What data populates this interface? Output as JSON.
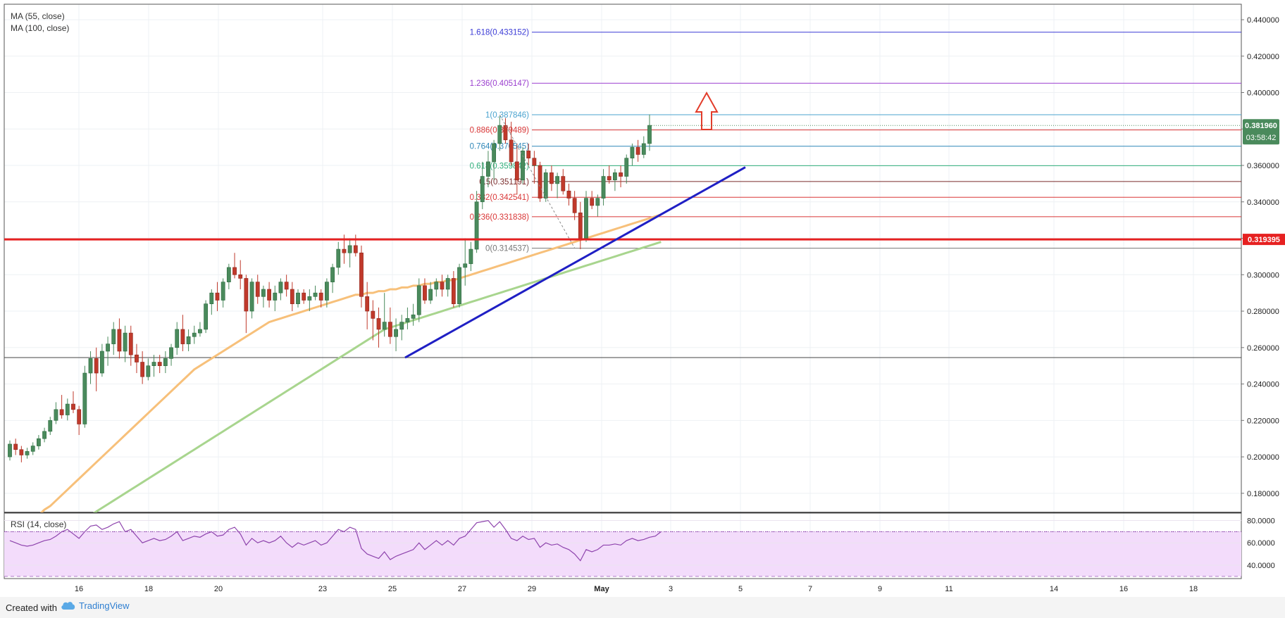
{
  "footer": {
    "created_with": "Created with",
    "brand": "TradingView"
  },
  "colors": {
    "up": "#4a8a5c",
    "down": "#c0392b",
    "ma55": "#f7c07a",
    "ma100": "#a8d58e",
    "support": "#e62121",
    "trendline": "#1f1fc4",
    "rsi_line": "#8e44ad",
    "rsi_band": "#f3dcfb",
    "price_badge": "#4a8a5c"
  },
  "chart_data": [
    {
      "type": "candlestick",
      "indicators": [
        "MA (55, close)",
        "MA (100, close)"
      ],
      "x_tick_labels": [
        "16",
        "18",
        "20",
        "23",
        "25",
        "27",
        "29",
        "May",
        "3",
        "5",
        "7",
        "9",
        "11",
        "14",
        "16",
        "18"
      ],
      "y_tick_labels": [
        "0.180000",
        "0.200000",
        "0.220000",
        "0.240000",
        "0.260000",
        "0.280000",
        "0.300000",
        "0.320000",
        "0.340000",
        "0.360000",
        "0.380000",
        "0.400000",
        "0.420000",
        "0.440000"
      ],
      "ylim": [
        0.1695,
        0.4485
      ],
      "support_level": {
        "value": 0.319395,
        "label": "0.319395"
      },
      "horizontal_line": 0.2545,
      "last_price": {
        "value": 0.38196,
        "label": "0.381960",
        "countdown": "03:58:42"
      },
      "fibonacci": [
        {
          "label": "1.618(0.433152)",
          "value": 0.433152,
          "color": "#3a3ad6"
        },
        {
          "label": "1.236(0.405147)",
          "value": 0.405147,
          "color": "#9b3fcf"
        },
        {
          "label": "1(0.387846)",
          "value": 0.387846,
          "color": "#4aa3cf"
        },
        {
          "label": "0.886(0.379489)",
          "value": 0.379489,
          "color": "#d93636"
        },
        {
          "label": "0.764(0.370545)",
          "value": 0.370545,
          "color": "#2f87b8"
        },
        {
          "label": "0.618(0.359842)",
          "value": 0.359842,
          "color": "#2fae7a"
        },
        {
          "label": "0.5(0.351191)",
          "value": 0.351191,
          "color": "#7a2b2b"
        },
        {
          "label": "0.382(0.342541)",
          "value": 0.342541,
          "color": "#d93636"
        },
        {
          "label": "0.236(0.331838)",
          "value": 0.331838,
          "color": "#d93636"
        },
        {
          "label": "0(0.314537)",
          "value": 0.314537,
          "color": "#777777"
        }
      ],
      "candles": [
        [
          0.2,
          0.209,
          0.198,
          0.207
        ],
        [
          0.207,
          0.21,
          0.201,
          0.204
        ],
        [
          0.204,
          0.206,
          0.197,
          0.201
        ],
        [
          0.201,
          0.205,
          0.199,
          0.203
        ],
        [
          0.203,
          0.208,
          0.201,
          0.206
        ],
        [
          0.206,
          0.212,
          0.204,
          0.21
        ],
        [
          0.21,
          0.216,
          0.208,
          0.214
        ],
        [
          0.214,
          0.222,
          0.212,
          0.22
        ],
        [
          0.22,
          0.23,
          0.218,
          0.226
        ],
        [
          0.226,
          0.234,
          0.221,
          0.223
        ],
        [
          0.223,
          0.232,
          0.22,
          0.229
        ],
        [
          0.229,
          0.236,
          0.224,
          0.226
        ],
        [
          0.226,
          0.228,
          0.212,
          0.218
        ],
        [
          0.218,
          0.25,
          0.216,
          0.246
        ],
        [
          0.246,
          0.258,
          0.24,
          0.254
        ],
        [
          0.254,
          0.26,
          0.236,
          0.246
        ],
        [
          0.246,
          0.262,
          0.244,
          0.258
        ],
        [
          0.258,
          0.266,
          0.25,
          0.262
        ],
        [
          0.262,
          0.274,
          0.256,
          0.27
        ],
        [
          0.27,
          0.276,
          0.254,
          0.258
        ],
        [
          0.258,
          0.272,
          0.252,
          0.268
        ],
        [
          0.268,
          0.272,
          0.25,
          0.256
        ],
        [
          0.256,
          0.262,
          0.246,
          0.252
        ],
        [
          0.252,
          0.258,
          0.24,
          0.244
        ],
        [
          0.244,
          0.254,
          0.242,
          0.25
        ],
        [
          0.25,
          0.256,
          0.244,
          0.252
        ],
        [
          0.252,
          0.256,
          0.246,
          0.25
        ],
        [
          0.25,
          0.258,
          0.246,
          0.254
        ],
        [
          0.254,
          0.262,
          0.25,
          0.26
        ],
        [
          0.26,
          0.274,
          0.256,
          0.27
        ],
        [
          0.27,
          0.278,
          0.258,
          0.262
        ],
        [
          0.262,
          0.27,
          0.258,
          0.266
        ],
        [
          0.266,
          0.272,
          0.262,
          0.268
        ],
        [
          0.268,
          0.274,
          0.266,
          0.27
        ],
        [
          0.27,
          0.286,
          0.268,
          0.284
        ],
        [
          0.284,
          0.292,
          0.278,
          0.29
        ],
        [
          0.29,
          0.296,
          0.28,
          0.286
        ],
        [
          0.286,
          0.298,
          0.282,
          0.296
        ],
        [
          0.296,
          0.306,
          0.292,
          0.304
        ],
        [
          0.304,
          0.312,
          0.298,
          0.3
        ],
        [
          0.3,
          0.308,
          0.292,
          0.298
        ],
        [
          0.298,
          0.3,
          0.268,
          0.28
        ],
        [
          0.28,
          0.298,
          0.276,
          0.296
        ],
        [
          0.296,
          0.3,
          0.284,
          0.288
        ],
        [
          0.288,
          0.294,
          0.282,
          0.292
        ],
        [
          0.292,
          0.296,
          0.282,
          0.286
        ],
        [
          0.286,
          0.294,
          0.28,
          0.29
        ],
        [
          0.29,
          0.298,
          0.286,
          0.296
        ],
        [
          0.296,
          0.3,
          0.288,
          0.292
        ],
        [
          0.292,
          0.296,
          0.28,
          0.284
        ],
        [
          0.284,
          0.292,
          0.282,
          0.29
        ],
        [
          0.29,
          0.292,
          0.284,
          0.286
        ],
        [
          0.286,
          0.292,
          0.28,
          0.288
        ],
        [
          0.288,
          0.294,
          0.286,
          0.29
        ],
        [
          0.29,
          0.292,
          0.282,
          0.286
        ],
        [
          0.286,
          0.298,
          0.282,
          0.296
        ],
        [
          0.296,
          0.306,
          0.29,
          0.304
        ],
        [
          0.304,
          0.318,
          0.3,
          0.314
        ],
        [
          0.314,
          0.322,
          0.306,
          0.312
        ],
        [
          0.312,
          0.32,
          0.304,
          0.316
        ],
        [
          0.316,
          0.322,
          0.31,
          0.312
        ],
        [
          0.312,
          0.316,
          0.282,
          0.288
        ],
        [
          0.288,
          0.296,
          0.27,
          0.28
        ],
        [
          0.28,
          0.286,
          0.264,
          0.276
        ],
        [
          0.276,
          0.282,
          0.26,
          0.27
        ],
        [
          0.27,
          0.29,
          0.266,
          0.274
        ],
        [
          0.274,
          0.282,
          0.262,
          0.266
        ],
        [
          0.266,
          0.276,
          0.258,
          0.27
        ],
        [
          0.27,
          0.278,
          0.264,
          0.274
        ],
        [
          0.274,
          0.282,
          0.27,
          0.276
        ],
        [
          0.276,
          0.284,
          0.272,
          0.278
        ],
        [
          0.278,
          0.298,
          0.274,
          0.294
        ],
        [
          0.294,
          0.298,
          0.284,
          0.286
        ],
        [
          0.286,
          0.296,
          0.284,
          0.292
        ],
        [
          0.292,
          0.298,
          0.288,
          0.296
        ],
        [
          0.296,
          0.3,
          0.288,
          0.292
        ],
        [
          0.292,
          0.3,
          0.288,
          0.298
        ],
        [
          0.298,
          0.302,
          0.282,
          0.284
        ],
        [
          0.284,
          0.306,
          0.282,
          0.304
        ],
        [
          0.304,
          0.32,
          0.294,
          0.306
        ],
        [
          0.306,
          0.318,
          0.302,
          0.314
        ],
        [
          0.314,
          0.346,
          0.312,
          0.34
        ],
        [
          0.34,
          0.362,
          0.336,
          0.354
        ],
        [
          0.354,
          0.368,
          0.348,
          0.362
        ],
        [
          0.362,
          0.374,
          0.352,
          0.372
        ],
        [
          0.372,
          0.387,
          0.368,
          0.382
        ],
        [
          0.382,
          0.386,
          0.372,
          0.374
        ],
        [
          0.374,
          0.384,
          0.36,
          0.362
        ],
        [
          0.362,
          0.372,
          0.344,
          0.352
        ],
        [
          0.352,
          0.37,
          0.35,
          0.368
        ],
        [
          0.368,
          0.372,
          0.36,
          0.364
        ],
        [
          0.364,
          0.368,
          0.35,
          0.36
        ],
        [
          0.36,
          0.362,
          0.34,
          0.342
        ],
        [
          0.342,
          0.358,
          0.34,
          0.356
        ],
        [
          0.356,
          0.36,
          0.346,
          0.35
        ],
        [
          0.35,
          0.356,
          0.342,
          0.354
        ],
        [
          0.354,
          0.358,
          0.344,
          0.346
        ],
        [
          0.346,
          0.35,
          0.338,
          0.342
        ],
        [
          0.342,
          0.346,
          0.33,
          0.334
        ],
        [
          0.334,
          0.34,
          0.314,
          0.32
        ],
        [
          0.32,
          0.346,
          0.318,
          0.342
        ],
        [
          0.342,
          0.346,
          0.336,
          0.338
        ],
        [
          0.338,
          0.344,
          0.332,
          0.342
        ],
        [
          0.342,
          0.358,
          0.338,
          0.354
        ],
        [
          0.354,
          0.36,
          0.35,
          0.352
        ],
        [
          0.352,
          0.358,
          0.346,
          0.356
        ],
        [
          0.356,
          0.36,
          0.348,
          0.354
        ],
        [
          0.354,
          0.366,
          0.35,
          0.364
        ],
        [
          0.364,
          0.372,
          0.36,
          0.37
        ],
        [
          0.37,
          0.374,
          0.362,
          0.366
        ],
        [
          0.366,
          0.376,
          0.364,
          0.372
        ],
        [
          0.372,
          0.388,
          0.368,
          0.382
        ]
      ],
      "ma55": [
        0.155,
        0.158,
        0.161,
        0.163,
        0.166,
        0.168,
        0.171,
        0.173,
        0.176,
        0.179,
        0.182,
        0.185,
        0.188,
        0.191,
        0.194,
        0.197,
        0.2,
        0.203,
        0.206,
        0.209,
        0.212,
        0.215,
        0.218,
        0.221,
        0.224,
        0.227,
        0.23,
        0.233,
        0.236,
        0.239,
        0.242,
        0.245,
        0.248,
        0.25,
        0.252,
        0.254,
        0.256,
        0.258,
        0.26,
        0.262,
        0.264,
        0.266,
        0.268,
        0.27,
        0.272,
        0.274,
        0.275,
        0.276,
        0.277,
        0.278,
        0.279,
        0.28,
        0.281,
        0.282,
        0.283,
        0.284,
        0.285,
        0.286,
        0.287,
        0.288,
        0.289,
        0.289,
        0.29,
        0.29,
        0.291,
        0.291,
        0.292,
        0.292,
        0.293,
        0.293,
        0.294,
        0.294,
        0.295,
        0.295,
        0.296,
        0.296,
        0.297,
        0.297,
        0.298,
        0.299,
        0.3,
        0.301,
        0.302,
        0.303,
        0.304,
        0.305,
        0.306,
        0.307,
        0.308,
        0.309,
        0.31,
        0.311,
        0.312,
        0.313,
        0.314,
        0.315,
        0.316,
        0.317,
        0.318,
        0.319,
        0.32,
        0.321,
        0.322,
        0.323,
        0.324,
        0.325,
        0.326,
        0.327,
        0.328,
        0.329,
        0.33,
        0.331,
        0.332,
        0.333
      ],
      "ma100": [
        0.14,
        0.142,
        0.144,
        0.146,
        0.148,
        0.15,
        0.152,
        0.154,
        0.156,
        0.158,
        0.16,
        0.162,
        0.164,
        0.166,
        0.168,
        0.17,
        0.172,
        0.174,
        0.176,
        0.178,
        0.18,
        0.182,
        0.184,
        0.186,
        0.188,
        0.19,
        0.192,
        0.194,
        0.196,
        0.198,
        0.2,
        0.202,
        0.204,
        0.206,
        0.208,
        0.21,
        0.212,
        0.214,
        0.216,
        0.218,
        0.22,
        0.222,
        0.224,
        0.226,
        0.228,
        0.23,
        0.232,
        0.234,
        0.236,
        0.238,
        0.24,
        0.242,
        0.244,
        0.246,
        0.248,
        0.25,
        0.252,
        0.254,
        0.256,
        0.258,
        0.26,
        0.262,
        0.264,
        0.266,
        0.268,
        0.27,
        0.271,
        0.272,
        0.273,
        0.274,
        0.275,
        0.276,
        0.277,
        0.278,
        0.279,
        0.28,
        0.281,
        0.282,
        0.283,
        0.284,
        0.285,
        0.286,
        0.287,
        0.288,
        0.289,
        0.29,
        0.291,
        0.292,
        0.293,
        0.294,
        0.295,
        0.296,
        0.297,
        0.298,
        0.299,
        0.3,
        0.301,
        0.302,
        0.303,
        0.304,
        0.305,
        0.306,
        0.307,
        0.308,
        0.309,
        0.31,
        0.311,
        0.312,
        0.313,
        0.314,
        0.315,
        0.316,
        0.317,
        0.318
      ],
      "trendline": {
        "from": {
          "x": "Apr 25",
          "y": 0.2545
        },
        "to": {
          "x": "May 5",
          "y": 0.359
        }
      },
      "annotation": "up-arrow"
    },
    {
      "type": "line",
      "indicator": "RSI (14, close)",
      "y_tick_labels": [
        "40.0000",
        "60.0000",
        "80.0000"
      ],
      "ylim": [
        28,
        86
      ],
      "band": [
        30,
        70
      ],
      "values": [
        62,
        60,
        58,
        57,
        58,
        60,
        62,
        63,
        66,
        70,
        72,
        68,
        64,
        70,
        75,
        76,
        72,
        74,
        77,
        79,
        70,
        72,
        66,
        60,
        62,
        64,
        62,
        63,
        66,
        70,
        62,
        64,
        66,
        65,
        68,
        70,
        66,
        67,
        72,
        74,
        68,
        58,
        64,
        60,
        62,
        60,
        62,
        66,
        60,
        56,
        60,
        58,
        60,
        62,
        58,
        60,
        66,
        72,
        70,
        74,
        72,
        55,
        50,
        48,
        46,
        52,
        45,
        48,
        50,
        52,
        54,
        60,
        54,
        58,
        62,
        58,
        62,
        58,
        64,
        66,
        72,
        78,
        79,
        80,
        74,
        79,
        72,
        64,
        62,
        66,
        63,
        64,
        56,
        60,
        58,
        59,
        56,
        54,
        50,
        44,
        54,
        52,
        54,
        58,
        58,
        59,
        58,
        62,
        64,
        62,
        63,
        65,
        66,
        70
      ]
    }
  ]
}
